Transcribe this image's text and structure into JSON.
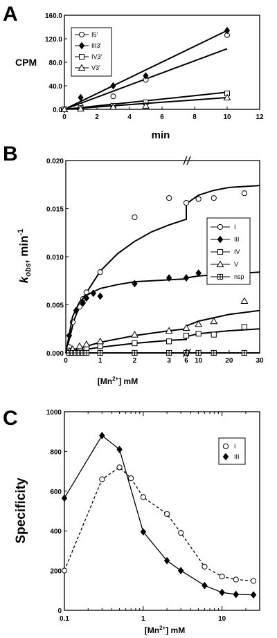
{
  "chart_data": [
    {
      "panel": "A",
      "type": "scatter",
      "xlabel": "min",
      "ylabel": "CPM",
      "xlim": [
        0,
        12
      ],
      "ylim": [
        0,
        160
      ],
      "x_ticks": [
        "0",
        "2",
        "4",
        "6",
        "8",
        "10",
        "12"
      ],
      "y_ticks": [
        "0.0",
        "40.0",
        "80.0",
        "120.0",
        "160.0"
      ],
      "legend_position": "top-left",
      "series": [
        {
          "name": "I5'",
          "marker": "open-circle",
          "points": [
            [
              0,
              0
            ],
            [
              1,
              6
            ],
            [
              3,
              22
            ],
            [
              5,
              50
            ],
            [
              10,
              126
            ]
          ],
          "fit": [
            [
              0,
              0
            ],
            [
              10,
              103
            ]
          ]
        },
        {
          "name": "III3'",
          "marker": "filled-diamond",
          "points": [
            [
              0,
              0
            ],
            [
              1,
              20
            ],
            [
              3,
              40
            ],
            [
              5,
              57
            ],
            [
              10,
              134
            ]
          ],
          "fit": [
            [
              0,
              0
            ],
            [
              10,
              134
            ]
          ]
        },
        {
          "name": "IV3'",
          "marker": "open-square",
          "points": [
            [
              0,
              0
            ],
            [
              1,
              2
            ],
            [
              3,
              6
            ],
            [
              5,
              12
            ],
            [
              10,
              27
            ]
          ],
          "fit": [
            [
              0,
              0
            ],
            [
              10,
              29
            ]
          ]
        },
        {
          "name": "V3'",
          "marker": "open-triangle",
          "points": [
            [
              0,
              0
            ],
            [
              1,
              1
            ],
            [
              3,
              4
            ],
            [
              5,
              6
            ],
            [
              10,
              20
            ]
          ],
          "fit": [
            [
              0,
              0
            ],
            [
              10,
              20
            ]
          ]
        }
      ]
    },
    {
      "panel": "B",
      "type": "scatter",
      "xlabel_base": "[Mn",
      "xlabel_sup": "2+",
      "xlabel_tail": "]  mM",
      "ylabel_main": "k",
      "ylabel_sub": "obs",
      "ylabel_tail": ", min",
      "ylabel_sup": "-1",
      "x_break": {
        "left_range": [
          0,
          3.5
        ],
        "right_range": [
          6,
          30
        ]
      },
      "ylim": [
        0,
        0.02
      ],
      "x_ticks_left": [
        "0",
        "1",
        "2",
        "3"
      ],
      "x_ticks_right": [
        "6",
        "10",
        "20",
        "30"
      ],
      "y_ticks": [
        "0.000",
        "0.005",
        "0.010",
        "0.015",
        "0.020"
      ],
      "legend_position": "right",
      "series": [
        {
          "name": "I",
          "marker": "open-circle",
          "points": [
            [
              0.1,
              0.0006
            ],
            [
              0.2,
              0.0032
            ],
            [
              0.4,
              0.0048
            ],
            [
              0.5,
              0.0056
            ],
            [
              0.6,
              0.0063
            ],
            [
              1,
              0.0084
            ],
            [
              2,
              0.0141
            ],
            [
              3,
              0.0161
            ],
            [
              6,
              0.0156
            ],
            [
              10,
              0.016
            ],
            [
              15,
              0.0161
            ],
            [
              25,
              0.0166
            ]
          ],
          "fit": [
            [
              0,
              0
            ],
            [
              0.25,
              0.0035
            ],
            [
              0.5,
              0.0057
            ],
            [
              1,
              0.0085
            ],
            [
              1.5,
              0.0103
            ],
            [
              2,
              0.0116
            ],
            [
              2.5,
              0.0126
            ],
            [
              3,
              0.0133
            ],
            [
              3.5,
              0.0139
            ],
            [
              6,
              0.0155
            ],
            [
              10,
              0.0164
            ],
            [
              15,
              0.0169
            ],
            [
              20,
              0.0172
            ],
            [
              30,
              0.0174
            ]
          ]
        },
        {
          "name": "III",
          "marker": "filled-diamond",
          "points": [
            [
              0.1,
              0.0018
            ],
            [
              0.3,
              0.0044
            ],
            [
              0.5,
              0.0052
            ],
            [
              0.6,
              0.0057
            ],
            [
              0.8,
              0.0062
            ],
            [
              1,
              0.0059
            ],
            [
              2,
              0.0072
            ],
            [
              3,
              0.0078
            ],
            [
              6,
              0.0078
            ],
            [
              10,
              0.0083
            ],
            [
              15,
              0.0079
            ],
            [
              25,
              0.0083
            ]
          ],
          "fit": [
            [
              0,
              0
            ],
            [
              0.2,
              0.0038
            ],
            [
              0.4,
              0.0053
            ],
            [
              0.6,
              0.006
            ],
            [
              1,
              0.0067
            ],
            [
              1.5,
              0.0071
            ],
            [
              2,
              0.0074
            ],
            [
              3,
              0.0076
            ],
            [
              3.5,
              0.0077
            ],
            [
              6,
              0.0078
            ],
            [
              10,
              0.008
            ],
            [
              20,
              0.0082
            ],
            [
              30,
              0.0084
            ]
          ]
        },
        {
          "name": "IV",
          "marker": "open-square",
          "points": [
            [
              0.1,
              0
            ],
            [
              0.2,
              0.0002
            ],
            [
              0.4,
              0.0003
            ],
            [
              0.6,
              0.0004
            ],
            [
              1,
              0.0007
            ],
            [
              2,
              0.001
            ],
            [
              3,
              0.0012
            ],
            [
              6,
              0.0018
            ],
            [
              10,
              0.002
            ],
            [
              15,
              0.0019
            ],
            [
              25,
              0.0027
            ]
          ],
          "fit": [
            [
              0,
              0
            ],
            [
              0.5,
              0.0003
            ],
            [
              1,
              0.0006
            ],
            [
              2,
              0.001
            ],
            [
              3,
              0.0013
            ],
            [
              3.5,
              0.0014
            ],
            [
              6,
              0.0017
            ],
            [
              10,
              0.002
            ],
            [
              20,
              0.0023
            ],
            [
              30,
              0.0025
            ]
          ]
        },
        {
          "name": "V",
          "marker": "open-triangle",
          "points": [
            [
              0.1,
              0.0002
            ],
            [
              0.2,
              0.0004
            ],
            [
              0.4,
              0.0007
            ],
            [
              0.6,
              0.0009
            ],
            [
              1,
              0.0012
            ],
            [
              2,
              0.0019
            ],
            [
              3,
              0.0023
            ],
            [
              6,
              0.0026
            ],
            [
              10,
              0.003
            ],
            [
              15,
              0.0033
            ],
            [
              25,
              0.0054
            ]
          ],
          "fit": [
            [
              0,
              0
            ],
            [
              0.5,
              0.0006
            ],
            [
              1,
              0.0011
            ],
            [
              2,
              0.0018
            ],
            [
              3,
              0.0023
            ],
            [
              3.5,
              0.0025
            ],
            [
              6,
              0.0028
            ],
            [
              10,
              0.0033
            ],
            [
              20,
              0.004
            ],
            [
              30,
              0.0044
            ]
          ]
        },
        {
          "name": "nsp",
          "marker": "crossed-square",
          "points": [
            [
              0.1,
              0
            ],
            [
              0.2,
              0
            ],
            [
              0.3,
              0
            ],
            [
              0.4,
              0
            ],
            [
              0.5,
              0
            ],
            [
              0.6,
              0
            ],
            [
              1,
              0
            ],
            [
              2,
              0
            ],
            [
              3,
              0
            ],
            [
              6,
              0
            ],
            [
              10,
              0
            ],
            [
              15,
              0
            ],
            [
              25,
              0
            ]
          ],
          "fit": [
            [
              0,
              0
            ],
            [
              3.5,
              0
            ],
            [
              6,
              0
            ],
            [
              30,
              0
            ]
          ]
        }
      ]
    },
    {
      "panel": "C",
      "type": "line",
      "xlabel_base": "[Mn",
      "xlabel_sup": "2+",
      "xlabel_tail": "]  mM",
      "ylabel": "Specificity",
      "xscale": "log",
      "xlim": [
        0.1,
        30
      ],
      "ylim": [
        0,
        1000
      ],
      "x_ticks": [
        "0.1",
        "1",
        "10"
      ],
      "y_ticks": [
        "0",
        "200",
        "400",
        "600",
        "800",
        "1000"
      ],
      "legend_position": "top-right",
      "series": [
        {
          "name": "I",
          "marker": "open-circle",
          "line": "dashed",
          "points": [
            [
              0.1,
              200
            ],
            [
              0.3,
              660
            ],
            [
              0.5,
              720
            ],
            [
              0.7,
              665
            ],
            [
              1,
              570
            ],
            [
              2,
              485
            ],
            [
              3,
              390
            ],
            [
              6,
              220
            ],
            [
              10,
              170
            ],
            [
              15,
              155
            ],
            [
              25,
              148
            ]
          ]
        },
        {
          "name": "III",
          "marker": "filled-diamond",
          "line": "solid",
          "points": [
            [
              0.1,
              565
            ],
            [
              0.3,
              880
            ],
            [
              0.5,
              810
            ],
            [
              1,
              395
            ],
            [
              2,
              250
            ],
            [
              3,
              200
            ],
            [
              6,
              125
            ],
            [
              10,
              90
            ],
            [
              15,
              80
            ],
            [
              25,
              78
            ]
          ]
        }
      ]
    }
  ]
}
